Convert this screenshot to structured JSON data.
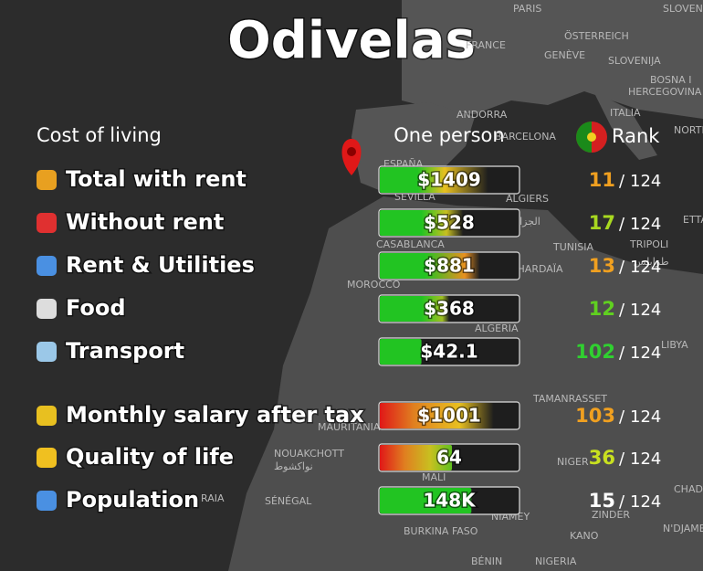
{
  "title": "Odivelas",
  "header": {
    "section": "Cost of living",
    "column": "One person",
    "rank": "Rank"
  },
  "rank_total": 124,
  "rows": [
    {
      "label": "Total with rent",
      "value": "$1409",
      "rank": 11,
      "rank_color": "#f0a020"
    },
    {
      "label": "Without rent",
      "value": "$528",
      "rank": 17,
      "rank_color": "#a8d820"
    },
    {
      "label": "Rent & Utilities",
      "value": "$881",
      "rank": 13,
      "rank_color": "#f0a020"
    },
    {
      "label": "Food",
      "value": "$368",
      "rank": 12,
      "rank_color": "#60d020"
    },
    {
      "label": "Transport",
      "value": "$42.1",
      "rank": 102,
      "rank_color": "#30d030"
    },
    {
      "label": "Monthly salary after tax",
      "value": "$1001",
      "rank": 103,
      "rank_color": "#f0a020"
    },
    {
      "label": "Quality of life",
      "value": "64",
      "rank": 36,
      "rank_color": "#c8e020"
    },
    {
      "label": "Population",
      "value": "148K",
      "rank": 15,
      "rank_color": "#ffffff"
    }
  ],
  "map_labels": [
    "PARIS",
    "SLOVEN",
    "FRANCE",
    "ÖSTERREICH",
    "GENÈVE",
    "SLOVENIJA",
    "BOSNA I",
    "HERCEGOVINA",
    "ITALIA",
    "ANDORRA",
    "BARCELONA",
    "NORTH",
    "ESPAÑA",
    "SEVILLA",
    "ALGIERS",
    "الجزائر",
    "CASABLANCA",
    "TUNISIA",
    "TRIPOLI",
    "طرابلس",
    "MOROCCO",
    "GHARDAÏA",
    "ALGERIA",
    "LIBYA",
    "TAMANRASSET",
    "MAURITANIA",
    "NOUAKCHOTT",
    "نواكشوط",
    "NIGER",
    "CHAD",
    "MALI",
    "SÉNÉGAL",
    "NIAMEY",
    "ZINDER",
    "BURKINA FASO",
    "KANO",
    "N'DJAMENA",
    "BÉNIN",
    "NIGERIA",
    "ETTA",
    "RAIA"
  ]
}
